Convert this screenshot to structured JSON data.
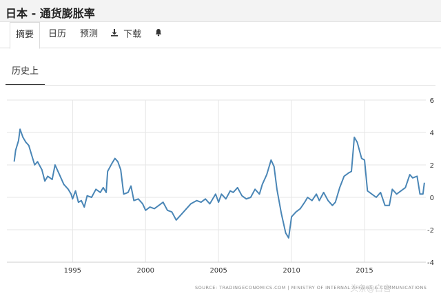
{
  "header": {
    "title": "日本 - 通货膨胀率"
  },
  "tabs": [
    {
      "label": "摘要",
      "icon": ""
    },
    {
      "label": "日历",
      "icon": ""
    },
    {
      "label": "预测",
      "icon": ""
    },
    {
      "label": "下载",
      "icon": "download-icon"
    },
    {
      "label": "",
      "icon": "bell-icon"
    }
  ],
  "subtab": {
    "label": "历史上"
  },
  "source": "SOURCE: TRADINGECONOMICS.COM | MINISTRY OF INTERNAL AFFAIRS & COMMUNICATIONS",
  "watermark": "头条@白言",
  "colors": {
    "line": "#4a86b6",
    "grid": "#e6e6e6",
    "axis_text": "#333333"
  },
  "chart_data": {
    "type": "line",
    "title": "",
    "xlabel": "",
    "ylabel": "",
    "x_ticks": [
      "1995",
      "2000",
      "2005",
      "2010",
      "2015"
    ],
    "y_ticks": [
      6,
      4,
      2,
      0,
      -2,
      -4
    ],
    "xlim": [
      1990.5,
      2019.2
    ],
    "ylim": [
      -4,
      6
    ],
    "grid": true,
    "y_axis_position": "right",
    "series": [
      {
        "name": "",
        "points": [
          [
            1991.0,
            2.2
          ],
          [
            1991.1,
            2.9
          ],
          [
            1991.3,
            3.5
          ],
          [
            1991.4,
            4.2
          ],
          [
            1991.6,
            3.7
          ],
          [
            1991.8,
            3.4
          ],
          [
            1992.0,
            3.2
          ],
          [
            1992.2,
            2.6
          ],
          [
            1992.4,
            2.0
          ],
          [
            1992.6,
            2.2
          ],
          [
            1992.9,
            1.7
          ],
          [
            1993.1,
            1.0
          ],
          [
            1993.3,
            1.3
          ],
          [
            1993.6,
            1.1
          ],
          [
            1993.8,
            2.0
          ],
          [
            1994.1,
            1.4
          ],
          [
            1994.4,
            0.8
          ],
          [
            1994.7,
            0.5
          ],
          [
            1994.9,
            0.2
          ],
          [
            1995.0,
            -0.1
          ],
          [
            1995.2,
            0.4
          ],
          [
            1995.4,
            -0.3
          ],
          [
            1995.6,
            -0.2
          ],
          [
            1995.8,
            -0.6
          ],
          [
            1996.0,
            0.1
          ],
          [
            1996.3,
            0.0
          ],
          [
            1996.6,
            0.5
          ],
          [
            1996.9,
            0.3
          ],
          [
            1997.1,
            0.6
          ],
          [
            1997.3,
            0.3
          ],
          [
            1997.4,
            1.6
          ],
          [
            1997.7,
            2.1
          ],
          [
            1997.9,
            2.4
          ],
          [
            1998.1,
            2.2
          ],
          [
            1998.3,
            1.7
          ],
          [
            1998.5,
            0.2
          ],
          [
            1998.8,
            0.3
          ],
          [
            1999.0,
            0.7
          ],
          [
            1999.2,
            -0.2
          ],
          [
            1999.5,
            -0.1
          ],
          [
            1999.8,
            -0.4
          ],
          [
            2000.0,
            -0.8
          ],
          [
            2000.3,
            -0.6
          ],
          [
            2000.6,
            -0.7
          ],
          [
            2000.9,
            -0.5
          ],
          [
            2001.2,
            -0.3
          ],
          [
            2001.5,
            -0.8
          ],
          [
            2001.8,
            -0.9
          ],
          [
            2002.1,
            -1.4
          ],
          [
            2002.4,
            -1.1
          ],
          [
            2002.8,
            -0.7
          ],
          [
            2003.1,
            -0.4
          ],
          [
            2003.5,
            -0.2
          ],
          [
            2003.8,
            -0.3
          ],
          [
            2004.1,
            -0.1
          ],
          [
            2004.4,
            -0.4
          ],
          [
            2004.8,
            0.2
          ],
          [
            2005.0,
            -0.3
          ],
          [
            2005.2,
            0.2
          ],
          [
            2005.5,
            -0.1
          ],
          [
            2005.8,
            0.4
          ],
          [
            2006.0,
            0.3
          ],
          [
            2006.3,
            0.6
          ],
          [
            2006.6,
            0.1
          ],
          [
            2006.9,
            -0.1
          ],
          [
            2007.2,
            0.0
          ],
          [
            2007.5,
            0.5
          ],
          [
            2007.8,
            0.2
          ],
          [
            2008.0,
            0.8
          ],
          [
            2008.3,
            1.4
          ],
          [
            2008.6,
            2.3
          ],
          [
            2008.8,
            1.9
          ],
          [
            2009.0,
            0.5
          ],
          [
            2009.3,
            -1.0
          ],
          [
            2009.6,
            -2.2
          ],
          [
            2009.8,
            -2.5
          ],
          [
            2010.0,
            -1.2
          ],
          [
            2010.3,
            -0.9
          ],
          [
            2010.6,
            -0.7
          ],
          [
            2010.9,
            -0.3
          ],
          [
            2011.1,
            0.0
          ],
          [
            2011.4,
            -0.2
          ],
          [
            2011.7,
            0.2
          ],
          [
            2011.9,
            -0.2
          ],
          [
            2012.2,
            0.3
          ],
          [
            2012.5,
            -0.2
          ],
          [
            2012.8,
            -0.5
          ],
          [
            2013.0,
            -0.3
          ],
          [
            2013.3,
            0.6
          ],
          [
            2013.6,
            1.3
          ],
          [
            2013.9,
            1.5
          ],
          [
            2014.1,
            1.6
          ],
          [
            2014.3,
            3.7
          ],
          [
            2014.5,
            3.4
          ],
          [
            2014.8,
            2.4
          ],
          [
            2015.0,
            2.3
          ],
          [
            2015.2,
            0.4
          ],
          [
            2015.5,
            0.2
          ],
          [
            2015.8,
            0.0
          ],
          [
            2016.1,
            0.3
          ],
          [
            2016.4,
            -0.5
          ],
          [
            2016.7,
            -0.5
          ],
          [
            2016.9,
            0.5
          ],
          [
            2017.2,
            0.2
          ],
          [
            2017.5,
            0.4
          ],
          [
            2017.8,
            0.6
          ],
          [
            2018.1,
            1.4
          ],
          [
            2018.3,
            1.2
          ],
          [
            2018.6,
            1.3
          ],
          [
            2018.8,
            0.2
          ],
          [
            2019.0,
            0.2
          ],
          [
            2019.1,
            0.9
          ]
        ]
      }
    ]
  }
}
